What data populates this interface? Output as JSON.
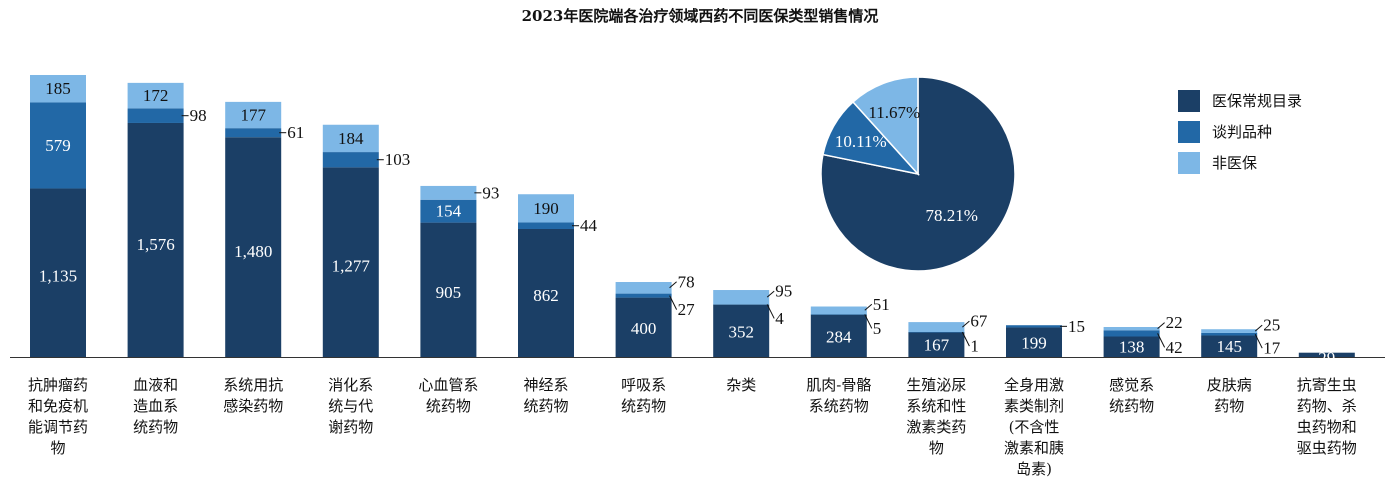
{
  "chart_data": [
    {
      "type": "bar",
      "stacked": true,
      "title": "2023年医院端各治疗领域西药不同医保类型销售情况",
      "categories": [
        [
          "抗肿瘤药",
          "和免疫机",
          "能调节药",
          "物"
        ],
        [
          "血液和",
          "造血系",
          "统药物"
        ],
        [
          "系统用抗",
          "感染药物"
        ],
        [
          "消化系",
          "统与代",
          "谢药物"
        ],
        [
          "心血管系",
          "统药物"
        ],
        [
          "神经系",
          "统药物"
        ],
        [
          "呼吸系",
          "统药物"
        ],
        [
          "杂类"
        ],
        [
          "肌肉-骨骼",
          "系统药物"
        ],
        [
          "生殖泌尿",
          "系统和性",
          "激素类药",
          "物"
        ],
        [
          "全身用激",
          "素类制剂",
          "(不含性",
          "激素和胰",
          "岛素)"
        ],
        [
          "感觉系",
          "统药物"
        ],
        [
          "皮肤病",
          "药物"
        ],
        [
          "抗寄生虫",
          "药物、杀",
          "虫药物和",
          "驱虫药物"
        ]
      ],
      "series": [
        {
          "name": "医保常规目录",
          "color": "#1b3f66",
          "values": [
            1135,
            1576,
            1480,
            1277,
            905,
            862,
            400,
            352,
            284,
            167,
            199,
            138,
            145,
            29
          ],
          "labels": [
            "1,135",
            "1,576",
            "1,480",
            "1,277",
            "905",
            "862",
            "400",
            "352",
            "284",
            "167",
            "199",
            "138",
            "145",
            "29"
          ]
        },
        {
          "name": "谈判品种",
          "color": "#2268a6",
          "values": [
            579,
            98,
            61,
            103,
            154,
            44,
            27,
            4,
            5,
            1,
            15,
            42,
            17,
            0
          ],
          "labels": [
            "579",
            "98",
            "61",
            "103",
            "154",
            "44",
            "27",
            "4",
            "5",
            "1",
            "15",
            "42",
            "17",
            ""
          ]
        },
        {
          "name": "非医保",
          "color": "#7db7e6",
          "values": [
            185,
            172,
            177,
            184,
            93,
            190,
            78,
            95,
            51,
            67,
            0,
            22,
            25,
            0
          ],
          "labels": [
            "185",
            "172",
            "177",
            "184",
            "93",
            "190",
            "78",
            "95",
            "51",
            "67",
            "",
            "22",
            "25",
            ""
          ]
        }
      ],
      "legend": "right",
      "grid": false
    },
    {
      "type": "pie",
      "slices": [
        {
          "name": "医保常规目录",
          "value": 78.21,
          "label": "78.21%",
          "color": "#1b3f66"
        },
        {
          "name": "谈判品种",
          "value": 10.11,
          "label": "10.11%",
          "color": "#2268a6"
        },
        {
          "name": "非医保",
          "value": 11.67,
          "label": "11.67%",
          "color": "#7db7e6"
        }
      ]
    }
  ],
  "legend": {
    "items": [
      {
        "name": "医保常规目录",
        "color": "#1b3f66"
      },
      {
        "name": "谈判品种",
        "color": "#2268a6"
      },
      {
        "name": "非医保",
        "color": "#7db7e6"
      }
    ]
  }
}
